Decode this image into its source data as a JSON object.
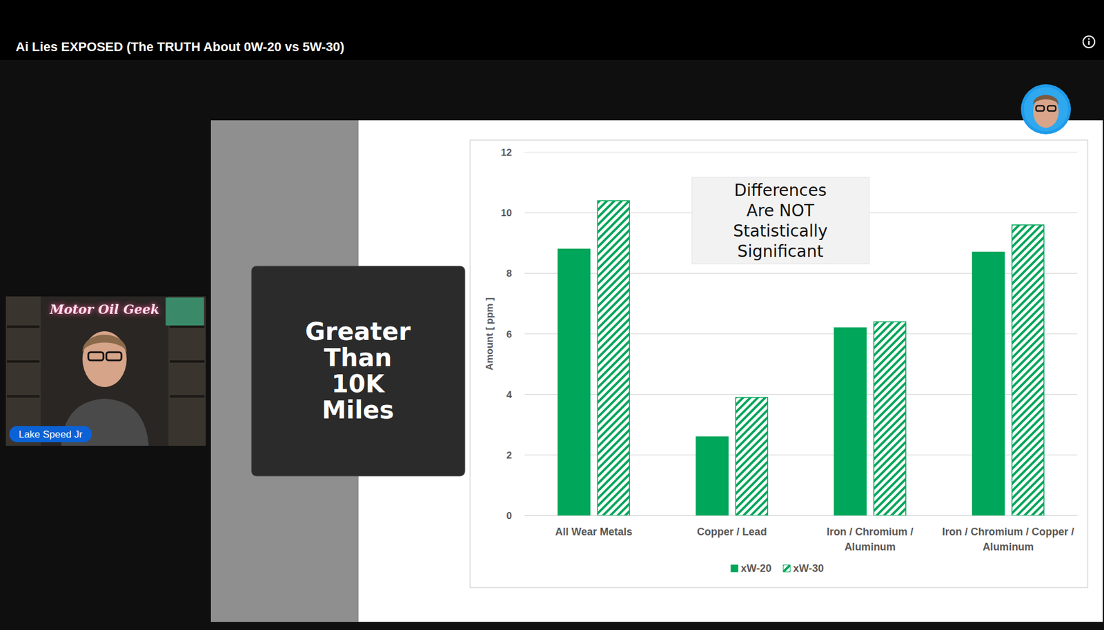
{
  "page": {
    "video_title": "Ai Lies EXPOSED (The TRUTH About 0W-20 vs 5W-30)",
    "speaker": "Lake Speed Jr",
    "sign": "Motor Oil Geek",
    "slide_caption": "Greater Than 10K Miles"
  },
  "chart_data": {
    "type": "bar",
    "y_label": "Amount [ ppm ]",
    "annotation": "Differences Are NOT Statistically Significant",
    "categories": [
      "All Wear Metals",
      "Copper / Lead",
      "Iron / Chromium / Aluminum",
      "Iron / Chromium / Copper / Aluminum"
    ],
    "series": [
      {
        "name": "xW-20",
        "color": "#00a65a",
        "line_style": "solid",
        "values": [
          8.8,
          2.6,
          6.2,
          8.7
        ]
      },
      {
        "name": "xW-30",
        "color": "#00a65a",
        "line_style": "hatched",
        "values": [
          10.4,
          3.9,
          6.4,
          9.6
        ]
      }
    ],
    "ylim": [
      0,
      12
    ],
    "yticks": [
      0,
      2,
      4,
      6,
      8,
      10,
      12
    ],
    "grid": true,
    "legend": "bottom"
  }
}
